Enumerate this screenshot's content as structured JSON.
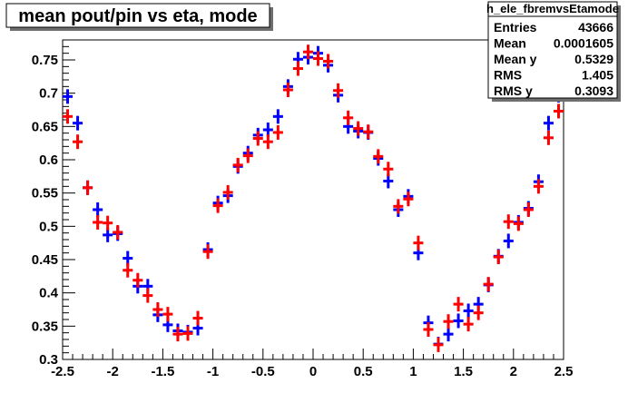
{
  "chart_data": {
    "type": "scatter",
    "title": "mean pout/pin vs eta, mode",
    "xlabel": "",
    "ylabel": "",
    "xlim": [
      -2.5,
      2.5
    ],
    "ylim": [
      0.3,
      0.78
    ],
    "x_ticks": [
      "-2.5",
      "-2",
      "-1.5",
      "-1",
      "-0.5",
      "0",
      "0.5",
      "1",
      "1.5",
      "2",
      "2.5"
    ],
    "y_ticks": [
      "0.3",
      "0.35",
      "0.4",
      "0.45",
      "0.5",
      "0.55",
      "0.6",
      "0.65",
      "0.7",
      "0.75"
    ],
    "grid": false,
    "legend": "none",
    "stats_box": {
      "name": "h_ele_fbremvsEtamode",
      "rows": [
        {
          "label": "Entries",
          "value": "43666"
        },
        {
          "label": "Mean",
          "value": "0.0001605"
        },
        {
          "label": "Mean y",
          "value": "0.5329"
        },
        {
          "label": "RMS",
          "value": "1.405"
        },
        {
          "label": "RMS y",
          "value": "0.3093"
        }
      ]
    },
    "series": [
      {
        "color": "#0000ff",
        "x": [
          -2.45,
          -2.35,
          -2.25,
          -2.15,
          -2.05,
          -1.95,
          -1.85,
          -1.75,
          -1.65,
          -1.55,
          -1.45,
          -1.35,
          -1.25,
          -1.15,
          -1.05,
          -0.95,
          -0.85,
          -0.75,
          -0.65,
          -0.55,
          -0.45,
          -0.35,
          -0.25,
          -0.15,
          -0.05,
          0.05,
          0.15,
          0.25,
          0.35,
          0.45,
          0.55,
          0.65,
          0.75,
          0.85,
          0.95,
          1.05,
          1.15,
          1.25,
          1.35,
          1.45,
          1.55,
          1.65,
          1.75,
          1.85,
          1.95,
          2.05,
          2.15,
          2.25,
          2.35,
          2.45
        ],
        "y": [
          0.695,
          0.655,
          0.558,
          0.525,
          0.487,
          0.489,
          0.452,
          0.41,
          0.41,
          0.367,
          0.352,
          0.343,
          0.341,
          0.347,
          0.465,
          0.535,
          0.546,
          0.59,
          0.61,
          0.637,
          0.645,
          0.665,
          0.71,
          0.751,
          0.754,
          0.76,
          0.742,
          0.697,
          0.65,
          0.643,
          0.641,
          0.602,
          0.568,
          0.525,
          0.545,
          0.46,
          0.355,
          0.323,
          0.338,
          0.358,
          0.373,
          0.383,
          0.412,
          0.455,
          0.478,
          0.506,
          0.527,
          0.567,
          0.655,
          0.697
        ]
      },
      {
        "color": "#ff0000",
        "x": [
          -2.45,
          -2.35,
          -2.25,
          -2.15,
          -2.05,
          -1.95,
          -1.85,
          -1.75,
          -1.65,
          -1.55,
          -1.45,
          -1.35,
          -1.25,
          -1.15,
          -1.05,
          -0.95,
          -0.85,
          -0.75,
          -0.65,
          -0.55,
          -0.45,
          -0.35,
          -0.25,
          -0.15,
          -0.05,
          0.05,
          0.15,
          0.25,
          0.35,
          0.45,
          0.55,
          0.65,
          0.75,
          0.85,
          0.95,
          1.05,
          1.15,
          1.25,
          1.35,
          1.45,
          1.55,
          1.65,
          1.75,
          1.85,
          1.95,
          2.05,
          2.15,
          2.25,
          2.35,
          2.45
        ],
        "y": [
          0.665,
          0.627,
          0.558,
          0.506,
          0.505,
          0.491,
          0.434,
          0.419,
          0.396,
          0.375,
          0.368,
          0.338,
          0.339,
          0.362,
          0.462,
          0.531,
          0.551,
          0.592,
          0.606,
          0.632,
          0.627,
          0.641,
          0.705,
          0.737,
          0.762,
          0.752,
          0.748,
          0.704,
          0.663,
          0.647,
          0.642,
          0.605,
          0.586,
          0.53,
          0.541,
          0.475,
          0.345,
          0.322,
          0.357,
          0.383,
          0.353,
          0.37,
          0.413,
          0.454,
          0.507,
          0.504,
          0.525,
          0.56,
          0.633,
          0.673
        ]
      }
    ]
  }
}
